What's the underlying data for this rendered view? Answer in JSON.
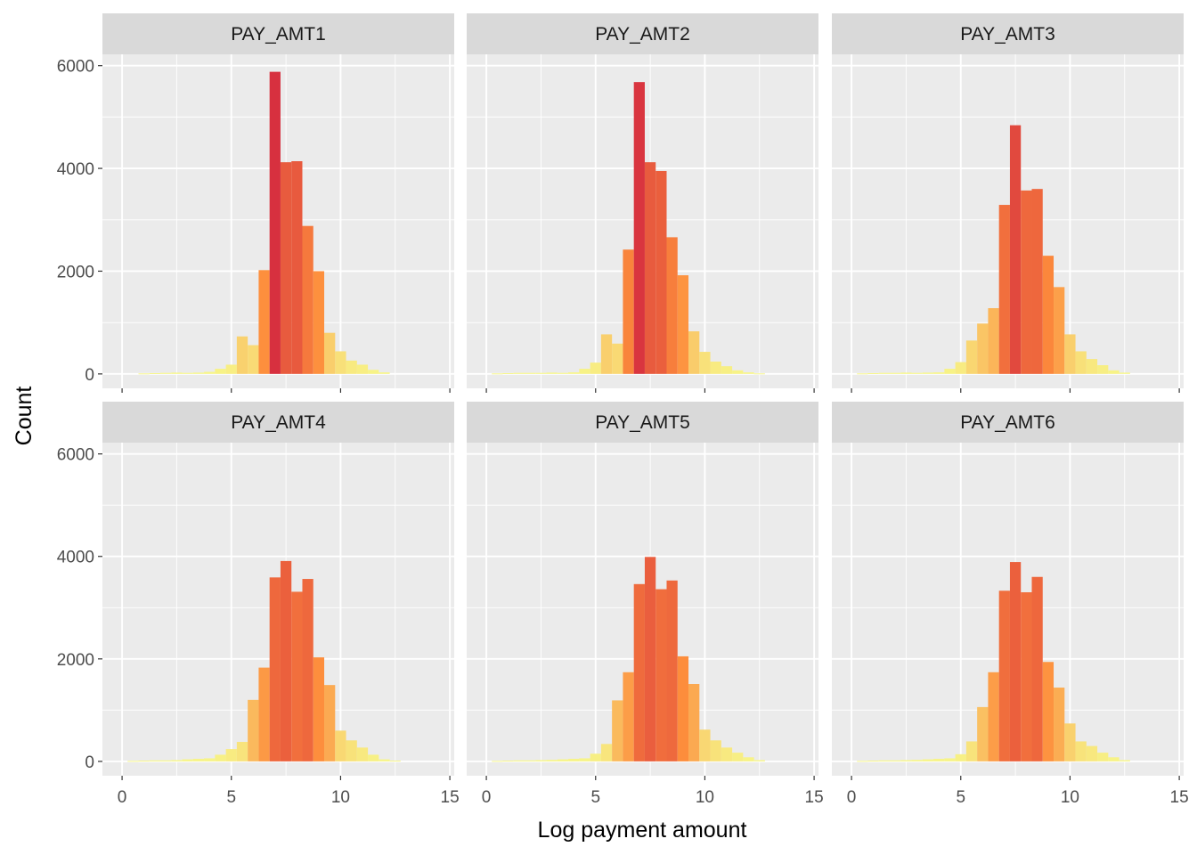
{
  "chart_data": {
    "type": "bar",
    "layout": "facet-grid",
    "xlabel": "Log payment amount",
    "ylabel": "Count",
    "xlim": [
      -0.9,
      15.2
    ],
    "ylim": [
      -280,
      6220
    ],
    "x_ticks": [
      0,
      5,
      10,
      15
    ],
    "y_ticks": [
      0,
      2000,
      4000,
      6000
    ],
    "bin_width": 0.5,
    "bin_centers": [
      0.5,
      1.0,
      1.5,
      2.0,
      2.5,
      3.0,
      3.5,
      4.0,
      4.5,
      5.0,
      5.5,
      6.0,
      6.5,
      7.0,
      7.5,
      8.0,
      8.5,
      9.0,
      9.5,
      10.0,
      10.5,
      11.0,
      11.5,
      12.0,
      12.5,
      13.0,
      13.5,
      14.0
    ],
    "fill_gradient": {
      "low": "#f7f78a",
      "mid": "#fd8d3c",
      "high": "#d7303f"
    },
    "grid": true,
    "legend": "none",
    "facets": [
      {
        "label": "PAY_AMT1",
        "values": [
          0,
          10,
          15,
          20,
          25,
          20,
          25,
          40,
          100,
          180,
          730,
          560,
          2020,
          5880,
          4120,
          4140,
          2880,
          2000,
          800,
          440,
          260,
          180,
          80,
          30,
          0,
          0,
          0,
          0
        ]
      },
      {
        "label": "PAY_AMT2",
        "values": [
          10,
          15,
          20,
          20,
          20,
          25,
          20,
          30,
          100,
          220,
          770,
          590,
          2420,
          5680,
          4120,
          3950,
          2660,
          1920,
          830,
          430,
          240,
          150,
          70,
          30,
          10,
          0,
          0,
          0
        ]
      },
      {
        "label": "PAY_AMT3",
        "values": [
          10,
          15,
          20,
          20,
          25,
          20,
          25,
          30,
          100,
          230,
          650,
          980,
          1280,
          3290,
          4840,
          3570,
          3600,
          2300,
          1690,
          770,
          440,
          290,
          170,
          70,
          25,
          0,
          0,
          0
        ]
      },
      {
        "label": "PAY_AMT4",
        "values": [
          10,
          15,
          20,
          20,
          25,
          40,
          50,
          60,
          130,
          240,
          380,
          1200,
          1830,
          3590,
          3910,
          3310,
          3560,
          2030,
          1490,
          600,
          410,
          270,
          130,
          40,
          15,
          0,
          0,
          0
        ]
      },
      {
        "label": "PAY_AMT5",
        "values": [
          10,
          15,
          20,
          20,
          25,
          30,
          40,
          50,
          60,
          150,
          340,
          1190,
          1740,
          3460,
          3990,
          3360,
          3530,
          2050,
          1510,
          620,
          410,
          270,
          170,
          80,
          25,
          0,
          0,
          0
        ]
      },
      {
        "label": "PAY_AMT6",
        "values": [
          10,
          15,
          20,
          20,
          25,
          30,
          40,
          50,
          60,
          140,
          390,
          1060,
          1740,
          3330,
          3890,
          3300,
          3600,
          1940,
          1440,
          740,
          390,
          300,
          170,
          80,
          25,
          0,
          0,
          0
        ]
      }
    ]
  }
}
